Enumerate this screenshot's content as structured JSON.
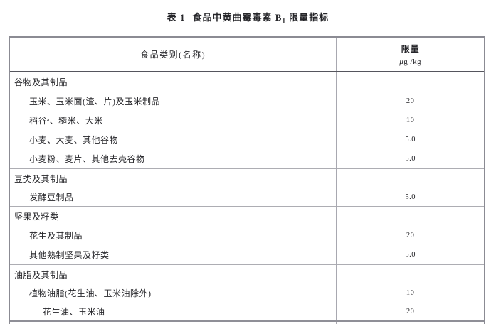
{
  "title": {
    "leading": "表 1",
    "main": "食品中黄曲霉毒素 B",
    "sub": "1",
    "trailing": " 限量指标"
  },
  "table": {
    "header": {
      "category": "食品类别(名称)",
      "limit_line1": "限量",
      "limit_line2_mu": "μ",
      "limit_line2_rest": "g /kg"
    },
    "rows": [
      {
        "name": "谷物及其制品",
        "value": "",
        "indent": 0
      },
      {
        "name": "玉米、玉米面(渣、片)及玉米制品",
        "value": "20",
        "indent": 1
      },
      {
        "name": "稻谷ᵃ、糙米、大米",
        "value": "10",
        "indent": 1
      },
      {
        "name": "小麦、大麦、其他谷物",
        "value": "5.0",
        "indent": 1
      },
      {
        "name": "小麦粉、麦片、其他去壳谷物",
        "value": "5.0",
        "indent": 1
      },
      {
        "name": "豆类及其制品",
        "value": "",
        "indent": 0
      },
      {
        "name": "发酵豆制品",
        "value": "5.0",
        "indent": 1
      },
      {
        "name": "坚果及籽类",
        "value": "",
        "indent": 0
      },
      {
        "name": "花生及其制品",
        "value": "20",
        "indent": 1
      },
      {
        "name": "其他熟制坚果及籽类",
        "value": "5.0",
        "indent": 1
      },
      {
        "name": "油脂及其制品",
        "value": "",
        "indent": 0
      },
      {
        "name": "植物油脂(花生油、玉米油除外)",
        "value": "10",
        "indent": 1
      },
      {
        "name": "花生油、玉米油",
        "value": "20",
        "indent": 2
      }
    ]
  },
  "colors": {
    "outer_border": "#8b8b93",
    "header_separator": "#55555d",
    "section_line": "#adadb3",
    "column_divider": "#a8a8b0",
    "text": "#26262a",
    "background": "#ffffff"
  }
}
